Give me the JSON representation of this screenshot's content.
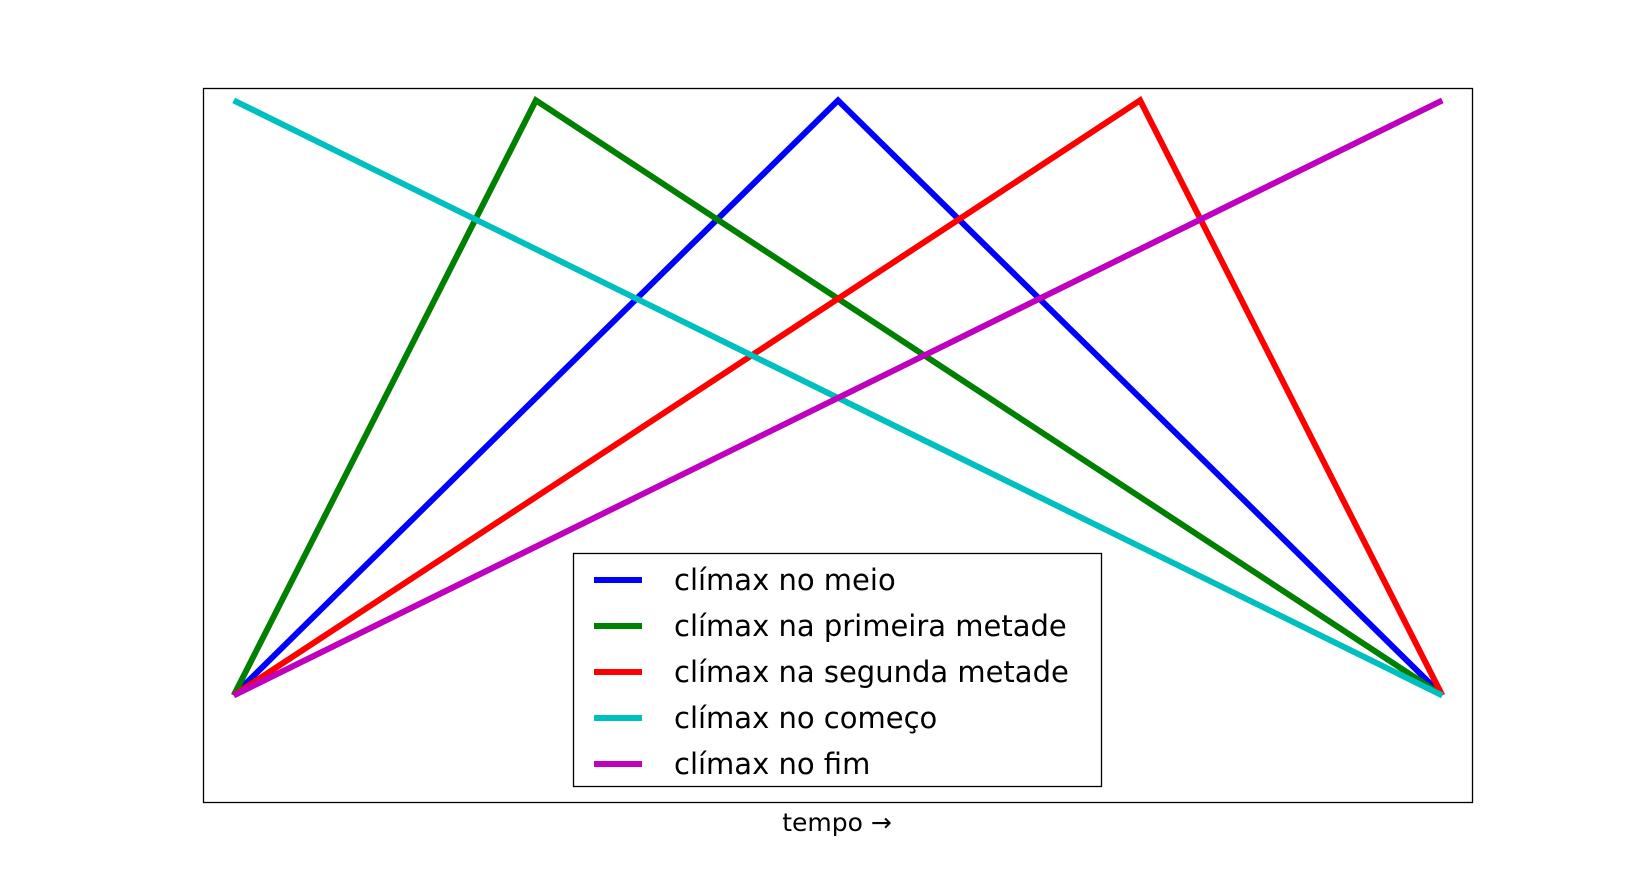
{
  "chart_data": {
    "type": "line",
    "title": "",
    "xlabel": "tempo →",
    "ylabel": "",
    "xlim": [
      -0.025,
      1.025
    ],
    "ylim": [
      -0.18,
      1.02
    ],
    "xticks": [],
    "yticks": [],
    "grid": false,
    "legend_location": "lower center",
    "series": [
      {
        "name": "clímax no meio",
        "color": "#0000ff",
        "x": [
          0,
          0.5,
          1
        ],
        "y": [
          0,
          1,
          0
        ]
      },
      {
        "name": "clímax na primeira metade",
        "color": "#008000",
        "x": [
          0,
          0.25,
          1
        ],
        "y": [
          0,
          1,
          0
        ]
      },
      {
        "name": "clímax na segunda metade",
        "color": "#ff0000",
        "x": [
          0,
          0.75,
          1
        ],
        "y": [
          0,
          1,
          0
        ]
      },
      {
        "name": "clímax no começo",
        "color": "#00bfbf",
        "x": [
          0,
          1
        ],
        "y": [
          1,
          0
        ]
      },
      {
        "name": "clímax no fim",
        "color": "#bf00bf",
        "x": [
          0,
          1
        ],
        "y": [
          0,
          1
        ]
      }
    ]
  }
}
